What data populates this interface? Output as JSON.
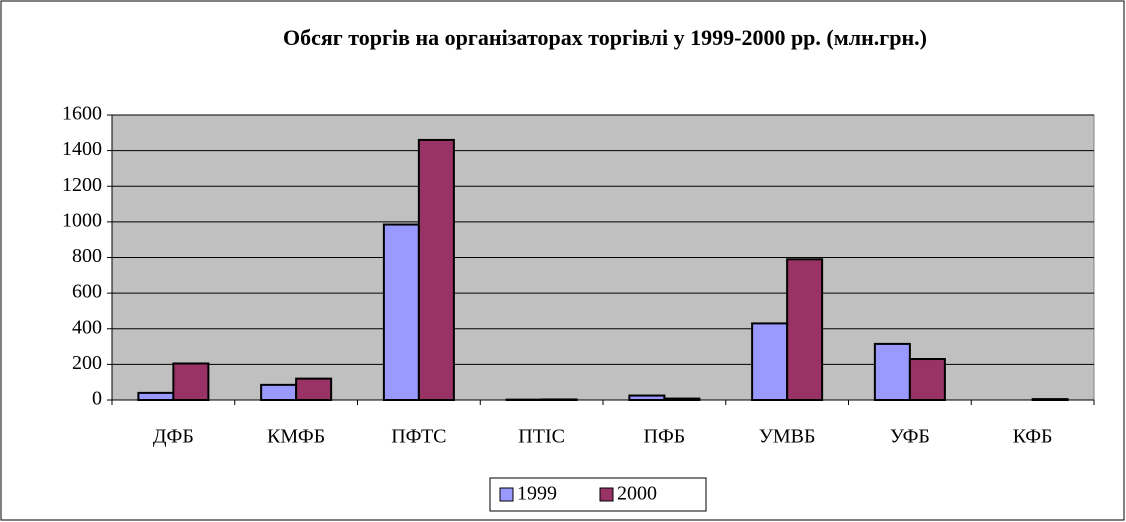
{
  "chart_data": {
    "type": "bar",
    "title": "Обсяг торгів на організаторах торгівлі у 1999-2000 рр. (млн.грн.)",
    "categories": [
      "ДФБ",
      "КМФБ",
      "ПФТС",
      "ПТІС",
      "ПФБ",
      "УМВБ",
      "УФБ",
      "КФБ"
    ],
    "series": [
      {
        "name": "1999",
        "color": "#9999ff",
        "values": [
          40,
          85,
          985,
          2,
          25,
          430,
          315,
          0
        ]
      },
      {
        "name": "2000",
        "color": "#993366",
        "values": [
          205,
          120,
          1460,
          3,
          8,
          790,
          230,
          5
        ]
      }
    ],
    "ylim": [
      0,
      1600
    ],
    "yticks": [
      0,
      200,
      400,
      600,
      800,
      1000,
      1200,
      1400,
      1600
    ],
    "grid": true,
    "legend": "bottom",
    "plot_background": "#c0c0c0"
  }
}
